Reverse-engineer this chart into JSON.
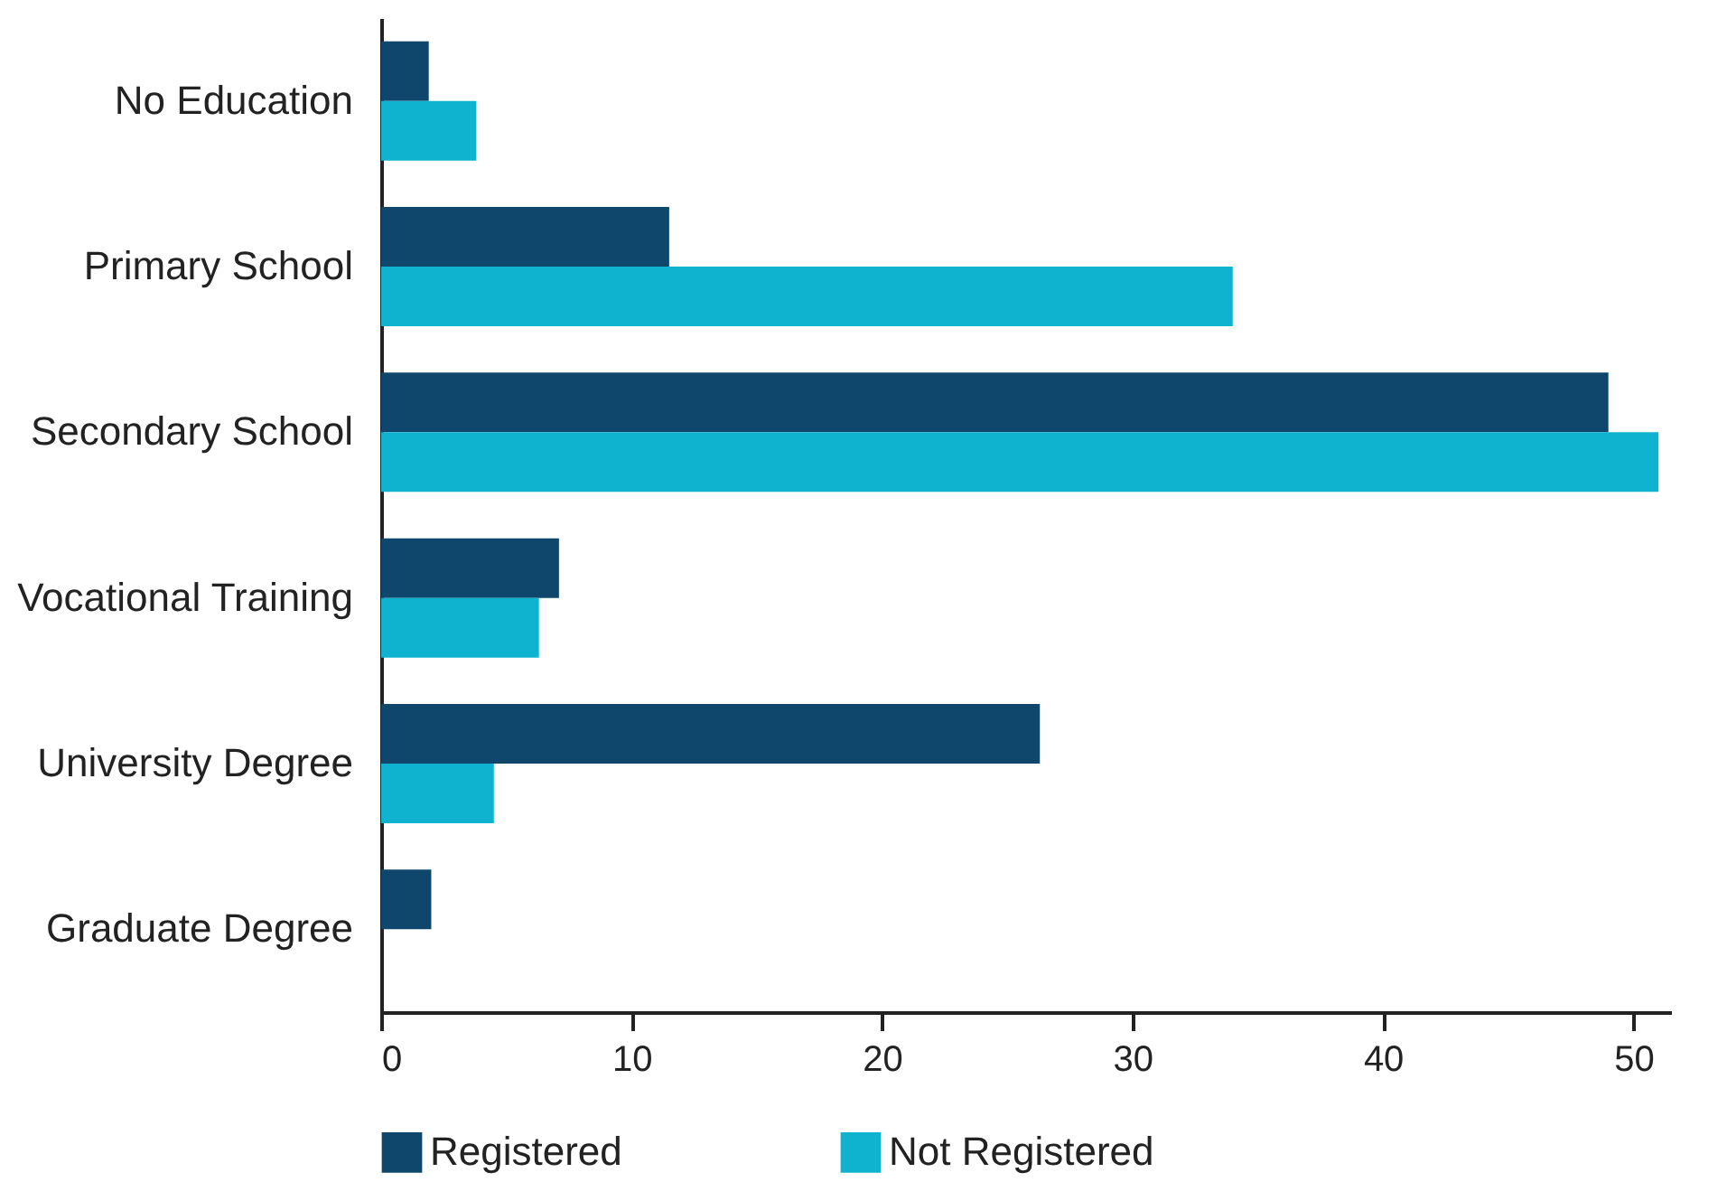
{
  "chart_data": {
    "type": "bar",
    "orientation": "horizontal",
    "categories": [
      "No Education",
      "Primary School",
      "Secondary School",
      "Vocational Training",
      "University Degree",
      "Graduate Degree"
    ],
    "series": [
      {
        "name": "Registered",
        "color": "#0f466b",
        "values": [
          1.9,
          11.5,
          49.0,
          7.1,
          26.3,
          2.0
        ]
      },
      {
        "name": "Not Registered",
        "color": "#10b3cf",
        "values": [
          3.8,
          34.0,
          51.0,
          6.3,
          4.5,
          null
        ]
      }
    ],
    "xlim": [
      0,
      51.5
    ],
    "xticks": [
      0,
      10,
      20,
      30,
      40,
      50
    ],
    "grid": false,
    "legend": "bottom"
  }
}
